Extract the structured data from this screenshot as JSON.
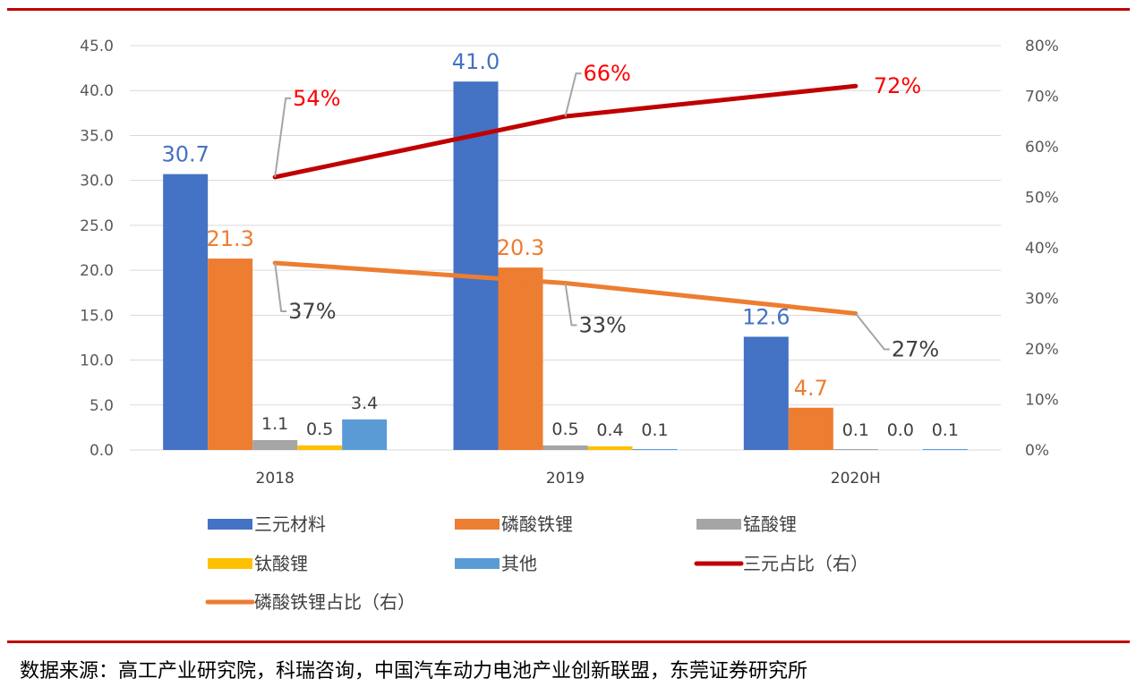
{
  "chart_data": {
    "type": "bar",
    "categories": [
      "2018",
      "2019",
      "2020H"
    ],
    "y_left": {
      "ticks": [
        "0.0",
        "5.0",
        "10.0",
        "15.0",
        "20.0",
        "25.0",
        "30.0",
        "35.0",
        "40.0",
        "45.0"
      ],
      "range": [
        0,
        45
      ]
    },
    "y_right": {
      "ticks": [
        "0%",
        "10%",
        "20%",
        "30%",
        "40%",
        "50%",
        "60%",
        "70%",
        "80%"
      ],
      "range": [
        0,
        0.8
      ]
    },
    "grid": true,
    "legend_placement": "bottom",
    "bar_series": [
      {
        "name": "三元材料",
        "color": "#4472c4",
        "values": [
          30.7,
          41.0,
          12.6
        ],
        "labels": [
          "30.7",
          "41.0",
          "12.6"
        ],
        "label_color": "#4472c4"
      },
      {
        "name": "磷酸铁锂",
        "color": "#ed7d31",
        "values": [
          21.3,
          20.3,
          4.7
        ],
        "labels": [
          "21.3",
          "20.3",
          "4.7"
        ],
        "label_color": "#ed7d31"
      },
      {
        "name": "锰酸锂",
        "color": "#a5a5a5",
        "values": [
          1.1,
          0.5,
          0.1
        ],
        "labels": [
          "1.1",
          "0.5",
          "0.1"
        ],
        "label_color": "#404040"
      },
      {
        "name": "钛酸锂",
        "color": "#ffc000",
        "values": [
          0.5,
          0.4,
          0.0
        ],
        "labels": [
          "0.5",
          "0.4",
          "0.0"
        ],
        "label_color": "#404040"
      },
      {
        "name": "其他",
        "color": "#5b9bd5",
        "values": [
          3.4,
          0.1,
          0.1
        ],
        "labels": [
          "3.4",
          "0.1",
          "0.1"
        ],
        "label_color": "#404040"
      }
    ],
    "line_series": [
      {
        "name": "三元占比（右）",
        "color": "#c00000",
        "values": [
          0.54,
          0.66,
          0.72
        ],
        "labels": [
          "54%",
          "66%",
          "72%"
        ],
        "label_color": "#ff0000"
      },
      {
        "name": "磷酸铁锂占比（右）",
        "color": "#ed7d31",
        "values": [
          0.37,
          0.33,
          0.27
        ],
        "labels": [
          "37%",
          "33%",
          "27%"
        ],
        "label_color": "#404040"
      }
    ]
  },
  "source_text": "数据来源：高工产业研究院，科瑞咨询，中国汽车动力电池产业创新联盟，东莞证券研究所"
}
